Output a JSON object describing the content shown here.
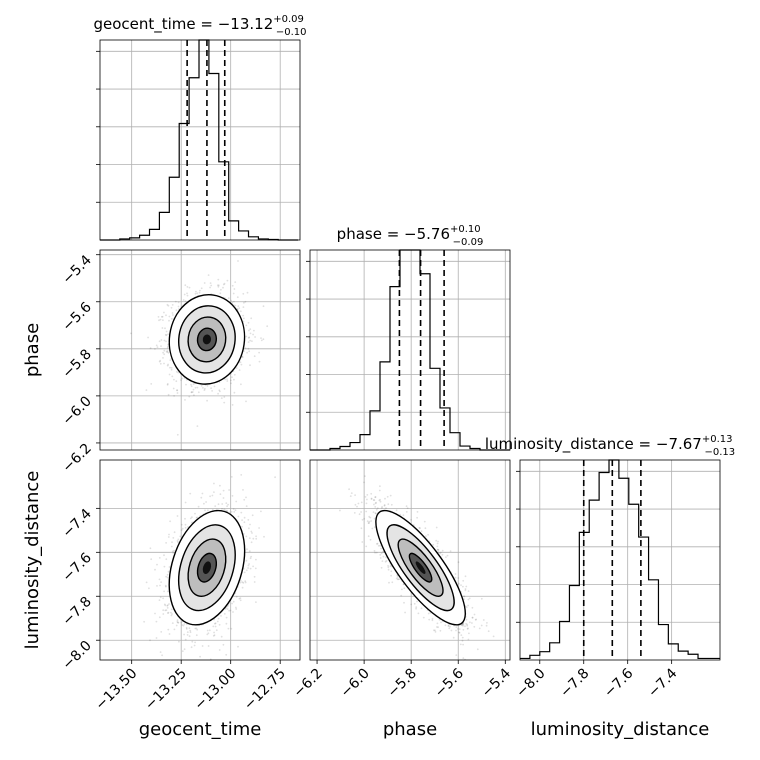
{
  "chart_data": {
    "type": "corner",
    "parameters": [
      "geocent_time",
      "phase",
      "luminosity_distance"
    ],
    "axis_labels": {
      "geocent_time": "geocent_time",
      "phase": "phase",
      "luminosity_distance": "luminosity_distance"
    },
    "titles": [
      {
        "param": "geocent_time",
        "text": "geocent_time = −13.12",
        "plus": "+0.09",
        "minus": "−0.10",
        "median": -13.12,
        "q16": -13.22,
        "q84": -13.03
      },
      {
        "param": "phase",
        "text": "phase = −5.76",
        "plus": "+0.10",
        "minus": "−0.09",
        "median": -5.76,
        "q16": -5.85,
        "q84": -5.66
      },
      {
        "param": "luminosity_distance",
        "text": "luminosity_distance = −7.67",
        "plus": "+0.13",
        "minus": "−0.13",
        "median": -7.67,
        "q16": -7.8,
        "q84": -7.54
      }
    ],
    "ranges": {
      "geocent_time": [
        -13.66,
        -12.65
      ],
      "phase": [
        -6.23,
        -5.38
      ],
      "luminosity_distance": [
        -8.09,
        -7.18
      ]
    },
    "ticks": {
      "geocent_time": {
        "values": [
          -13.5,
          -13.25,
          -13.0,
          -12.75
        ],
        "labels": [
          "−13.50",
          "−13.25",
          "−13.00",
          "−12.75"
        ]
      },
      "phase_x": {
        "values": [
          -6.2,
          -6.0,
          -5.8,
          -5.6,
          -5.4
        ],
        "labels": [
          "−6.2",
          "−6.0",
          "−5.8",
          "−5.6",
          "−5.4"
        ]
      },
      "phase_y": {
        "values": [
          -6.2,
          -6.0,
          -5.8,
          -5.6,
          -5.4
        ],
        "labels": [
          "−6.2",
          "−6.0",
          "−5.8",
          "−5.6",
          "−5.4"
        ]
      },
      "luminosity_distance_x": {
        "values": [
          -8.0,
          -7.8,
          -7.6,
          -7.4
        ],
        "labels": [
          "−8.0",
          "−7.8",
          "−7.6",
          "−7.4"
        ]
      },
      "luminosity_distance_y": {
        "values": [
          -8.0,
          -7.8,
          -7.6,
          -7.4
        ],
        "labels": [
          "−8.0",
          "−7.8",
          "−7.6",
          "−7.4"
        ]
      }
    },
    "histograms": {
      "geocent_time": {
        "bin_edges": [
          -13.66,
          -13.61,
          -13.56,
          -13.51,
          -13.46,
          -13.41,
          -13.36,
          -13.31,
          -13.26,
          -13.21,
          -13.16,
          -13.11,
          -13.06,
          -13.01,
          -12.96,
          -12.91,
          -12.86,
          -12.81,
          -12.76,
          -12.71,
          -12.66
        ],
        "counts": [
          0,
          0,
          2,
          4,
          9,
          20,
          52,
          118,
          219,
          305,
          376,
          313,
          147,
          36,
          17,
          6,
          2,
          1,
          0,
          0
        ]
      },
      "phase": {
        "bin_edges": [
          -6.23,
          -6.1875,
          -6.145,
          -6.1025,
          -6.06,
          -6.0175,
          -5.975,
          -5.9325,
          -5.89,
          -5.8475,
          -5.805,
          -5.7625,
          -5.72,
          -5.6775,
          -5.635,
          -5.5925,
          -5.55,
          -5.5075,
          -5.465,
          -5.4225,
          -5.38
        ],
        "counts": [
          0,
          0,
          3,
          7,
          15,
          31,
          79,
          178,
          330,
          404,
          404,
          356,
          165,
          85,
          35,
          8,
          3,
          0,
          0,
          0
        ]
      },
      "luminosity_distance": {
        "bin_edges": [
          -8.09,
          -8.045,
          -8.0,
          -7.955,
          -7.91,
          -7.865,
          -7.82,
          -7.775,
          -7.73,
          -7.685,
          -7.64,
          -7.595,
          -7.55,
          -7.505,
          -7.46,
          -7.415,
          -7.37,
          -7.325,
          -7.28,
          -7.235,
          -7.18
        ],
        "counts": [
          3,
          9,
          16,
          33,
          74,
          143,
          245,
          307,
          360,
          384,
          349,
          299,
          236,
          154,
          68,
          31,
          17,
          11,
          3,
          3
        ]
      }
    },
    "scatter_2d": [
      {
        "x": "geocent_time",
        "y": "phase",
        "center": [
          -13.12,
          -5.76
        ],
        "sd": [
          0.095,
          0.095
        ],
        "corr": 0.05
      },
      {
        "x": "geocent_time",
        "y": "luminosity_distance",
        "center": [
          -13.12,
          -7.67
        ],
        "sd": [
          0.095,
          0.13
        ],
        "corr": 0.3
      },
      {
        "x": "phase",
        "y": "luminosity_distance",
        "center": [
          -5.76,
          -7.67
        ],
        "sd": [
          0.095,
          0.13
        ],
        "corr": -0.8
      }
    ],
    "grid": true
  }
}
